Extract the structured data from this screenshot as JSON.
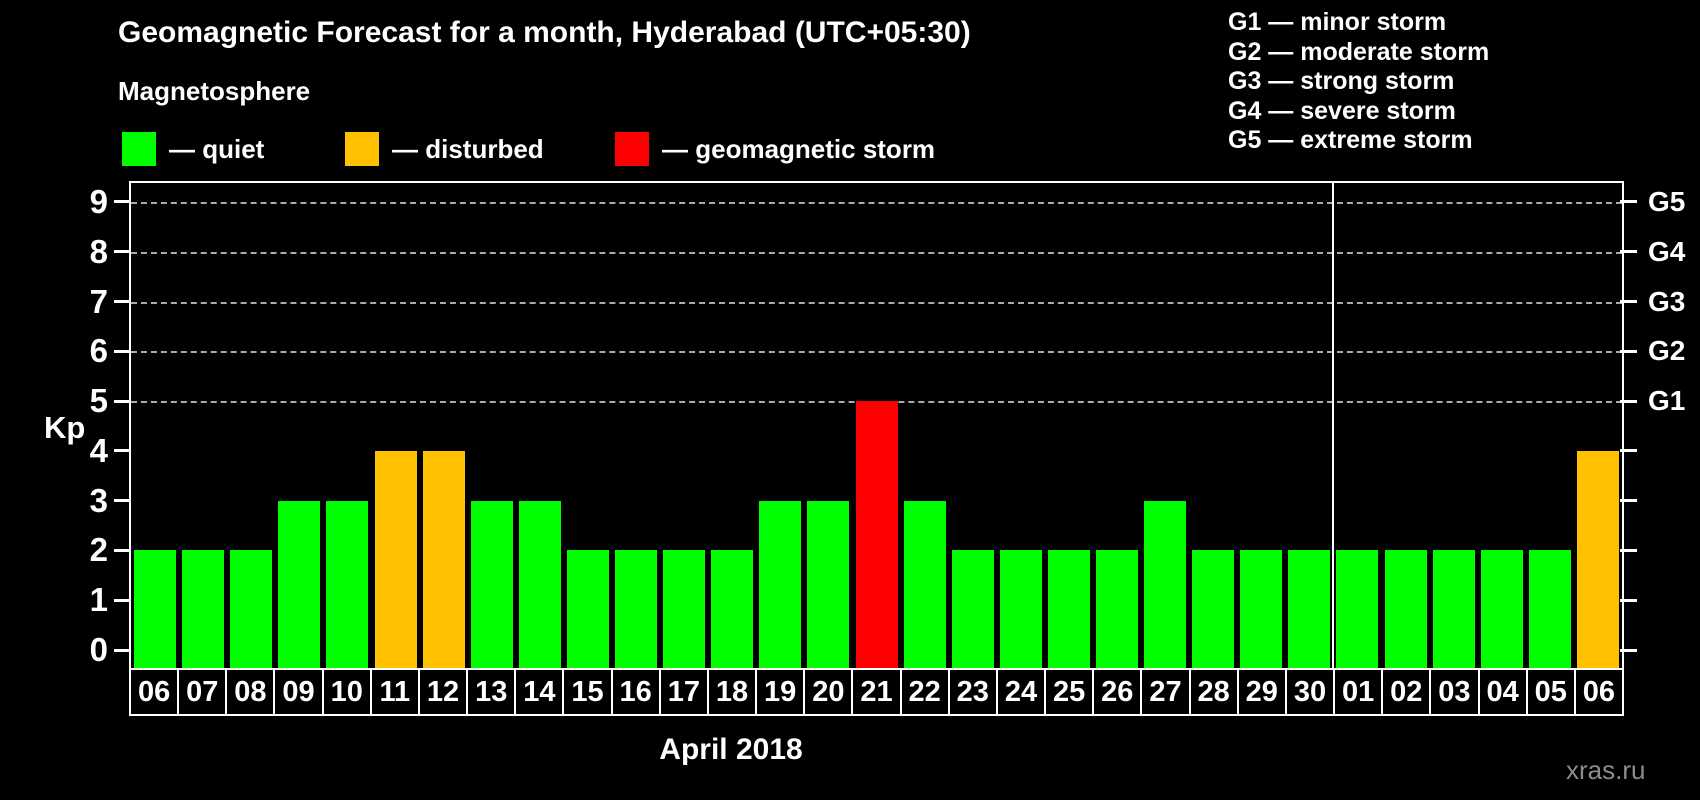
{
  "title": "Geomagnetic Forecast for a month, Hyderabad (UTC+05:30)",
  "legend": {
    "heading": "Magnetosphere",
    "items": [
      {
        "name": "quiet",
        "label": "— quiet",
        "color": "#00ff00"
      },
      {
        "name": "disturbed",
        "label": "— disturbed",
        "color": "#ffc000"
      },
      {
        "name": "geomagnetic-storm",
        "label": "— geomagnetic storm",
        "color": "#ff0000"
      }
    ]
  },
  "g_scale_legend": [
    "G1 — minor storm",
    "G2 — moderate storm",
    "G3 — strong storm",
    "G4 — severe storm",
    "G5 — extreme storm"
  ],
  "watermark": "xras.ru",
  "chart_data": {
    "type": "bar",
    "title": "Geomagnetic Forecast for a month, Hyderabad (UTC+05:30)",
    "ylabel": "Kp",
    "xlabel": "April 2018",
    "ylim": [
      0,
      9
    ],
    "y_ticks": [
      0,
      1,
      2,
      3,
      4,
      5,
      6,
      7,
      8,
      9
    ],
    "gridlines_at_kp": [
      5,
      6,
      7,
      8,
      9
    ],
    "grid": "dashed horizontal lines only at storm levels G1-G5 (Kp 5-9)",
    "legend_position": "top",
    "right_axis_labels": [
      {
        "kp": 5,
        "label": "G1"
      },
      {
        "kp": 6,
        "label": "G2"
      },
      {
        "kp": 7,
        "label": "G3"
      },
      {
        "kp": 8,
        "label": "G4"
      },
      {
        "kp": 9,
        "label": "G5"
      }
    ],
    "categories": [
      "06",
      "07",
      "08",
      "09",
      "10",
      "11",
      "12",
      "13",
      "14",
      "15",
      "16",
      "17",
      "18",
      "19",
      "20",
      "21",
      "22",
      "23",
      "24",
      "25",
      "26",
      "27",
      "28",
      "29",
      "30",
      "01",
      "02",
      "03",
      "04",
      "05",
      "06"
    ],
    "series": [
      {
        "name": "Kp forecast",
        "values": [
          2,
          2,
          2,
          3,
          3,
          4,
          4,
          3,
          3,
          2,
          2,
          2,
          2,
          3,
          3,
          5,
          3,
          2,
          2,
          2,
          2,
          3,
          2,
          2,
          2,
          2,
          2,
          2,
          2,
          2,
          4
        ],
        "statuses": [
          "quiet",
          "quiet",
          "quiet",
          "quiet",
          "quiet",
          "disturbed",
          "disturbed",
          "quiet",
          "quiet",
          "quiet",
          "quiet",
          "quiet",
          "quiet",
          "quiet",
          "quiet",
          "storm",
          "quiet",
          "quiet",
          "quiet",
          "quiet",
          "quiet",
          "quiet",
          "quiet",
          "quiet",
          "quiet",
          "quiet",
          "quiet",
          "quiet",
          "quiet",
          "quiet",
          "disturbed"
        ]
      }
    ],
    "status_colors": {
      "quiet": "#00ff00",
      "disturbed": "#ffc000",
      "storm": "#ff0000"
    },
    "month_boundary_after_index": 24
  }
}
